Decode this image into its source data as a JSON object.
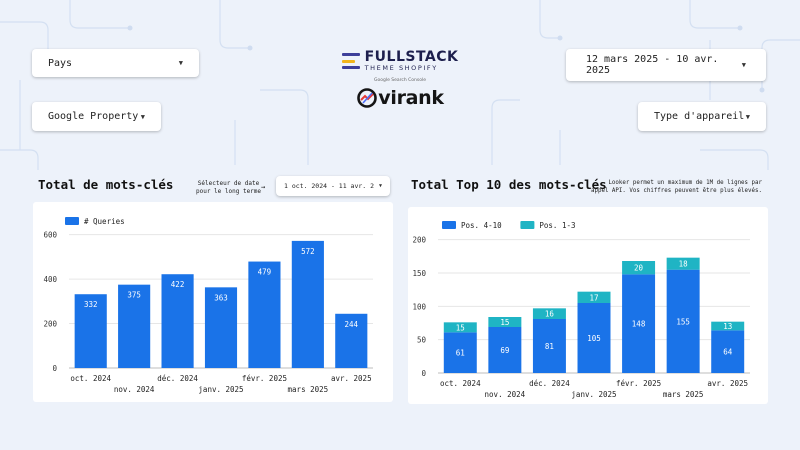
{
  "filters": {
    "pays": "Pays",
    "date_range": "12 mars 2025 - 10 avr. 2025",
    "google_property": "Google Property",
    "type_appareil": "Type d'appareil",
    "date_selector_note_line1": "Sélecteur de date",
    "date_selector_note_line2": "pour le long terme",
    "date_selector_arrow": "→",
    "long_range": "1 oct. 2024 - 11 avr. 2"
  },
  "branding": {
    "fullstack_name": "FULLSTACK",
    "fullstack_sub": "THEME SHOPIFY",
    "gsc_label": "Google Search Console",
    "ovirank_name": "virank",
    "icon_colors": [
      "#3d3f9a",
      "#f2b51d",
      "#3d3f9a"
    ]
  },
  "left_section": {
    "title": "Total de mots-clés"
  },
  "right_section": {
    "title": "Total Top 10 des mots-clés",
    "note_line1": "Looker permet un maximum de 1M de lignes par",
    "note_line2": "appel API. Vos chiffres peuvent être plus élevés."
  },
  "chart_data": [
    {
      "type": "bar",
      "categories": [
        "oct. 2024",
        "nov. 2024",
        "déc. 2024",
        "janv. 2025",
        "févr. 2025",
        "mars 2025",
        "avr. 2025"
      ],
      "series": [
        {
          "name": "# Queries",
          "values": [
            332,
            375,
            422,
            363,
            479,
            572,
            244
          ],
          "color": "#1a73e8"
        }
      ],
      "yticks": [
        0,
        200,
        400,
        600
      ],
      "ylim": [
        0,
        630
      ],
      "legend": "top-left",
      "grid": true
    },
    {
      "type": "bar",
      "stacked": true,
      "categories": [
        "oct. 2024",
        "nov. 2024",
        "déc. 2024",
        "janv. 2025",
        "févr. 2025",
        "mars 2025",
        "avr. 2025"
      ],
      "series": [
        {
          "name": "Pos. 4-10",
          "values": [
            61,
            69,
            81,
            105,
            148,
            155,
            64
          ],
          "color": "#1a73e8"
        },
        {
          "name": "Pos. 1-3",
          "values": [
            15,
            15,
            16,
            17,
            20,
            18,
            13
          ],
          "color": "#1fb4c4"
        }
      ],
      "yticks": [
        0,
        50,
        100,
        150,
        200
      ],
      "ylim": [
        0,
        210
      ],
      "legend": "top-left",
      "grid": true
    }
  ]
}
